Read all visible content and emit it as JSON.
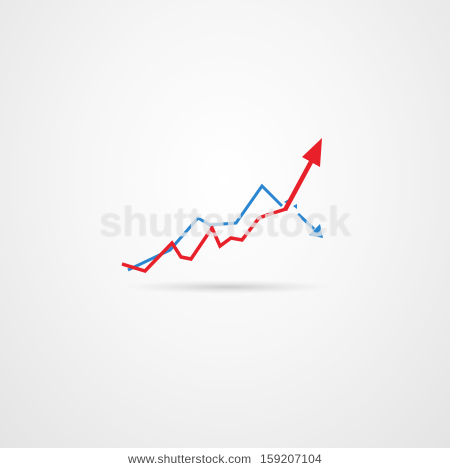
{
  "watermark": {
    "text": "shutterstock"
  },
  "footer": {
    "site": "www.shutterstock.com",
    "image_number": "159207104"
  },
  "graphic": {
    "primary_color": "#e8202a",
    "secondary_color": "#2a86d0",
    "shadow_color": "#cfcfcf"
  }
}
